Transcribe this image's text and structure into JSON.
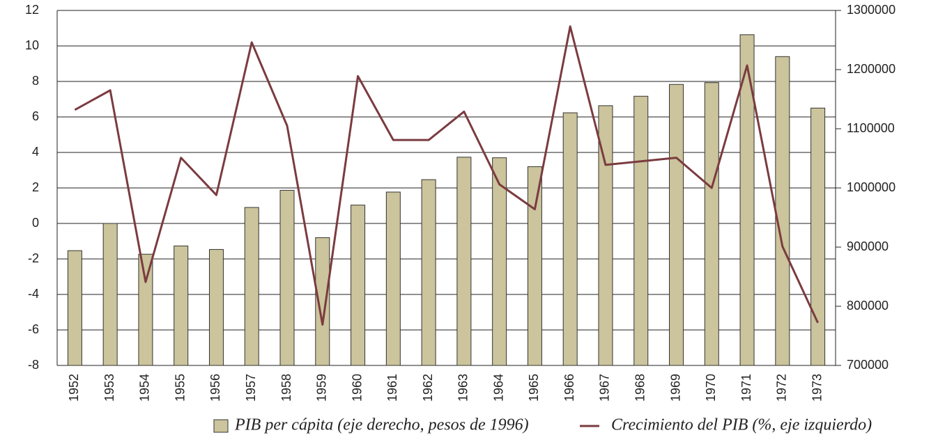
{
  "chart_data": {
    "type": "bar",
    "categories": [
      "1952",
      "1953",
      "1954",
      "1955",
      "1956",
      "1957",
      "1958",
      "1959",
      "1960",
      "1961",
      "1962",
      "1963",
      "1964",
      "1965",
      "1966",
      "1967",
      "1968",
      "1969",
      "1970",
      "1971",
      "1972",
      "1973"
    ],
    "series": [
      {
        "name": "PIB per cápita (eje derecho, pesos de 1996)",
        "type": "bar",
        "axis": "y2",
        "color": "#cbc49c",
        "values": [
          894000,
          940000,
          888000,
          902000,
          896000,
          967000,
          996000,
          916000,
          971000,
          993000,
          1014000,
          1052000,
          1051000,
          1036000,
          1127000,
          1139000,
          1155000,
          1175000,
          1178000,
          1259000,
          1222000,
          1135000
        ]
      },
      {
        "name": "Crecimiento del PIB (%, eje izquierdo)",
        "type": "line",
        "color": "#7b3b40",
        "values": [
          6.4,
          7.5,
          -3.3,
          3.7,
          1.6,
          10.2,
          5.5,
          -5.7,
          8.3,
          4.7,
          4.7,
          6.3,
          2.2,
          0.8,
          11.1,
          3.3,
          3.5,
          3.7,
          2.0,
          8.9,
          -1.3,
          -5.6
        ]
      }
    ],
    "ylim": [
      -8,
      12
    ],
    "yticks": [
      -8,
      -6,
      -4,
      -2,
      0,
      2,
      4,
      6,
      8,
      10,
      12
    ],
    "y2lim": [
      700000,
      1300000
    ],
    "y2ticks": [
      700000,
      800000,
      900000,
      1000000,
      1100000,
      1200000,
      1300000
    ],
    "grid": true,
    "legend": "bottom"
  }
}
